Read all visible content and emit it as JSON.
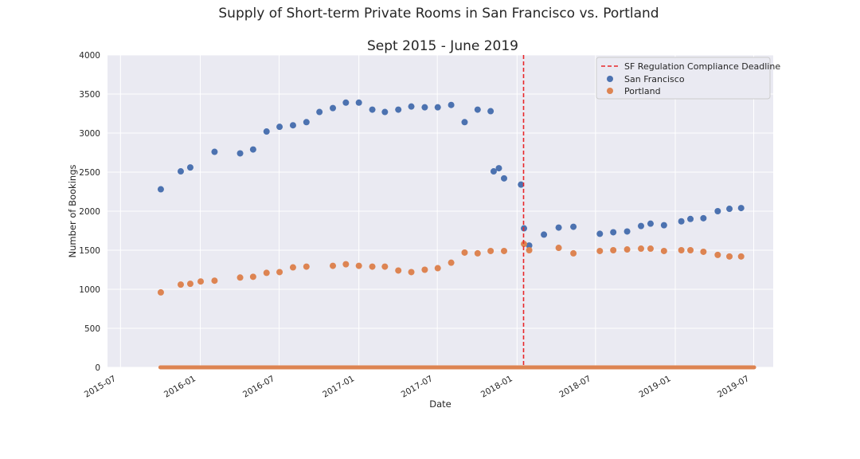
{
  "chart_data": {
    "type": "scatter",
    "title": "Supply of Short-term Private Rooms in San Francisco vs. Portland",
    "subtitle": "Sept 2015 - June 2019",
    "xlabel": "Date",
    "ylabel": "Number of Bookings",
    "xlim": [
      "2015-06-01",
      "2019-08-15"
    ],
    "ylim": [
      0,
      4000
    ],
    "x_ticks": [
      "2015-07",
      "2016-01",
      "2016-07",
      "2017-01",
      "2017-07",
      "2018-01",
      "2018-07",
      "2019-01",
      "2019-07"
    ],
    "y_ticks": [
      0,
      500,
      1000,
      1500,
      2000,
      2500,
      3000,
      3500,
      4000
    ],
    "grid": true,
    "legend_position": "upper right",
    "vline": {
      "name": "SF Regulation Compliance Deadline",
      "x": "2018-01-16",
      "color": "#e8272a",
      "style": "dashed"
    },
    "series": [
      {
        "name": "San Francisco",
        "color": "#4c72b0",
        "x": [
          "2015-10-02",
          "2015-11-17",
          "2015-12-09",
          "2016-02-03",
          "2016-04-02",
          "2016-05-02",
          "2016-06-02",
          "2016-07-02",
          "2016-08-02",
          "2016-09-02",
          "2016-10-02",
          "2016-11-02",
          "2016-12-02",
          "2017-01-01",
          "2017-02-01",
          "2017-03-02",
          "2017-04-02",
          "2017-05-02",
          "2017-06-02",
          "2017-07-02",
          "2017-08-02",
          "2017-09-02",
          "2017-10-02",
          "2017-11-01",
          "2017-11-08",
          "2017-11-20",
          "2017-12-02",
          "2018-01-10",
          "2018-01-17",
          "2018-01-29",
          "2018-03-04",
          "2018-04-07",
          "2018-05-11",
          "2018-07-11",
          "2018-08-11",
          "2018-09-12",
          "2018-10-14",
          "2018-11-05",
          "2018-12-06",
          "2019-01-15",
          "2019-02-05",
          "2019-03-07",
          "2019-04-09",
          "2019-05-06",
          "2019-06-02"
        ],
        "y": [
          2280,
          2510,
          2560,
          2760,
          2740,
          2790,
          3020,
          3080,
          3100,
          3140,
          3270,
          3320,
          3390,
          3390,
          3300,
          3270,
          3300,
          3340,
          3330,
          3330,
          3360,
          3140,
          3300,
          3280,
          2510,
          2550,
          2420,
          2340,
          1780,
          1560,
          1700,
          1790,
          1800,
          1710,
          1730,
          1740,
          1810,
          1840,
          1820,
          1870,
          1900,
          1910,
          2000,
          2030,
          2040
        ]
      },
      {
        "name": "Portland",
        "color": "#dd8452",
        "x": [
          "2015-10-02",
          "2015-11-17",
          "2015-12-09",
          "2016-01-02",
          "2016-02-03",
          "2016-04-02",
          "2016-05-02",
          "2016-06-02",
          "2016-07-02",
          "2016-08-02",
          "2016-09-02",
          "2016-11-02",
          "2016-12-02",
          "2017-01-01",
          "2017-02-01",
          "2017-03-02",
          "2017-04-02",
          "2017-05-02",
          "2017-06-02",
          "2017-07-02",
          "2017-08-02",
          "2017-09-02",
          "2017-10-02",
          "2017-11-01",
          "2017-12-02",
          "2018-01-17",
          "2018-01-29",
          "2018-04-07",
          "2018-05-11",
          "2018-07-11",
          "2018-08-11",
          "2018-09-12",
          "2018-10-14",
          "2018-11-05",
          "2018-12-06",
          "2019-01-15",
          "2019-02-05",
          "2019-03-07",
          "2019-04-09",
          "2019-05-06",
          "2019-06-02"
        ],
        "y": [
          960,
          1060,
          1070,
          1100,
          1110,
          1150,
          1160,
          1210,
          1220,
          1280,
          1290,
          1300,
          1320,
          1300,
          1290,
          1290,
          1240,
          1220,
          1250,
          1270,
          1340,
          1470,
          1460,
          1490,
          1490,
          1580,
          1500,
          1530,
          1460,
          1490,
          1500,
          1510,
          1520,
          1520,
          1490,
          1500,
          1500,
          1480,
          1440,
          1420,
          1420
        ]
      }
    ],
    "baseline_band": {
      "from": "2015-10-01",
      "to": "2019-07-02",
      "y": 0,
      "color": "#dd8452"
    }
  }
}
